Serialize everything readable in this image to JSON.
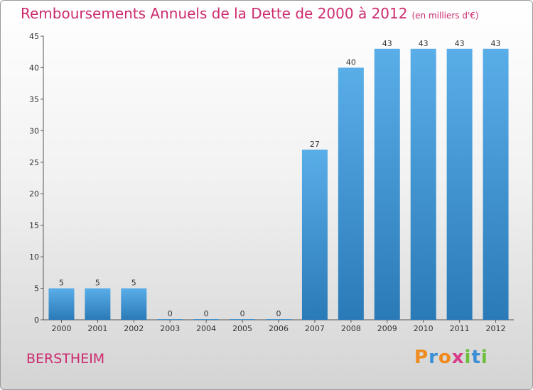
{
  "header": {
    "title": "Remboursements Annuels de la Dette de 2000 à 2012",
    "unit": "(en milliers d'€)"
  },
  "footer": {
    "city": "BERSTHEIM",
    "brand_letters": [
      "P",
      "r",
      "o",
      "x",
      "i",
      "t",
      "i"
    ]
  },
  "colors": {
    "title": "#cc2a6e",
    "bar_light": "#5aaee8",
    "bar_dark": "#2a7ab8",
    "brand": [
      "#f08a1c",
      "#3b8fd4",
      "#f08a1c",
      "#d93a8a",
      "#6cbf3a",
      "#3b8fd4",
      "#6cbf3a"
    ]
  },
  "chart_data": {
    "type": "bar",
    "title": "Remboursements Annuels de la Dette de 2000 à 2012",
    "categories": [
      "2000",
      "2001",
      "2002",
      "2003",
      "2004",
      "2005",
      "2006",
      "2007",
      "2008",
      "2009",
      "2010",
      "2011",
      "2012"
    ],
    "values": [
      5,
      5,
      5,
      0,
      0,
      0,
      0,
      27,
      40,
      43,
      43,
      43,
      43
    ],
    "xlabel": "",
    "ylabel": "",
    "ylim": [
      0,
      45
    ],
    "yticks": [
      0,
      5,
      10,
      15,
      20,
      25,
      30,
      35,
      40,
      45
    ],
    "grid": false,
    "legend": "none"
  }
}
